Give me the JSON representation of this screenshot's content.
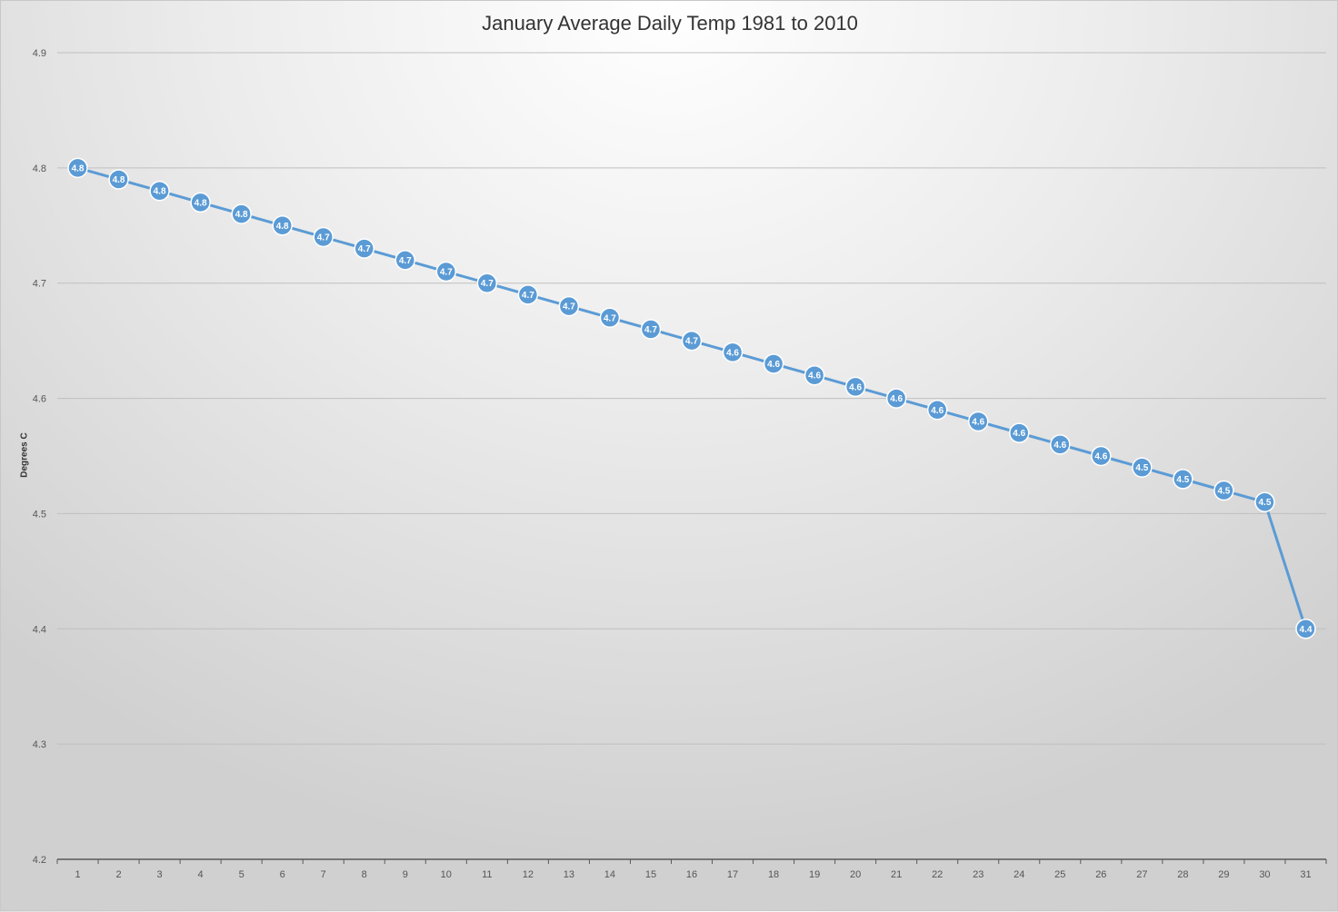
{
  "chart_data": {
    "type": "line",
    "title": "January Average Daily Temp 1981 to 2010",
    "xlabel": "",
    "ylabel": "Degrees C",
    "ylim": [
      4.2,
      4.9
    ],
    "y_ticks": [
      "4.2",
      "4.3",
      "4.4",
      "4.5",
      "4.6",
      "4.7",
      "4.8",
      "4.9"
    ],
    "categories": [
      "1",
      "2",
      "3",
      "4",
      "5",
      "6",
      "7",
      "8",
      "9",
      "10",
      "11",
      "12",
      "13",
      "14",
      "15",
      "16",
      "17",
      "18",
      "19",
      "20",
      "21",
      "22",
      "23",
      "24",
      "25",
      "26",
      "27",
      "28",
      "29",
      "30",
      "31"
    ],
    "values": [
      4.8,
      4.79,
      4.78,
      4.77,
      4.76,
      4.75,
      4.74,
      4.73,
      4.72,
      4.71,
      4.7,
      4.69,
      4.68,
      4.67,
      4.66,
      4.65,
      4.64,
      4.63,
      4.62,
      4.61,
      4.6,
      4.59,
      4.58,
      4.57,
      4.56,
      4.55,
      4.54,
      4.53,
      4.52,
      4.51,
      4.4
    ],
    "data_labels": [
      "4.8",
      "4.8",
      "4.8",
      "4.8",
      "4.8",
      "4.8",
      "4.7",
      "4.7",
      "4.7",
      "4.7",
      "4.7",
      "4.7",
      "4.7",
      "4.7",
      "4.7",
      "4.7",
      "4.6",
      "4.6",
      "4.6",
      "4.6",
      "4.6",
      "4.6",
      "4.6",
      "4.6",
      "4.6",
      "4.6",
      "4.5",
      "4.5",
      "4.5",
      "4.5",
      "4.4"
    ],
    "grid": true,
    "legend": "none",
    "line_color": "#5b9bd5",
    "gridline_color": "#bfbfbf",
    "axis_color": "#595959"
  }
}
